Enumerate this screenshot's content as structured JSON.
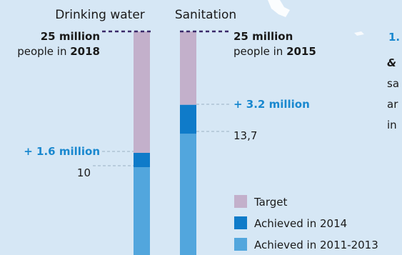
{
  "chart_data": {
    "type": "bar",
    "unit": "million people",
    "categories": [
      "Drinking water",
      "Sanitation"
    ],
    "series": [
      {
        "name": "Achieved in 2011-2013",
        "values": [
          10,
          13.7
        ]
      },
      {
        "name": "Achieved in 2014",
        "values": [
          1.6,
          3.2
        ]
      },
      {
        "name": "Target",
        "values": [
          13.4,
          8.1
        ]
      }
    ],
    "targets": [
      25,
      25
    ],
    "ylim": [
      0,
      25
    ],
    "annotations": {
      "water_target_value": "25 million",
      "water_target_pre": "people in ",
      "water_target_year": "2018",
      "water_gain": "+ 1.6 million",
      "water_base": "10",
      "san_target_value": "25 million",
      "san_target_pre": "people in ",
      "san_target_year": "2015",
      "san_gain": "+ 3.2 million",
      "san_base": "13,7"
    },
    "legend_position": "bottom-right"
  },
  "side_text": {
    "heading_a": "1.",
    "heading_b": "&",
    "line1": "sa",
    "line2": "ar",
    "line3": "in"
  },
  "colors": {
    "background": "#d6e7f5",
    "target": "#c3b0cb",
    "achieved_2014": "#0f7bc9",
    "achieved_2011_2013": "#52a6dd",
    "accent_text": "#1a88cf",
    "target_line": "#3b2a6a"
  }
}
